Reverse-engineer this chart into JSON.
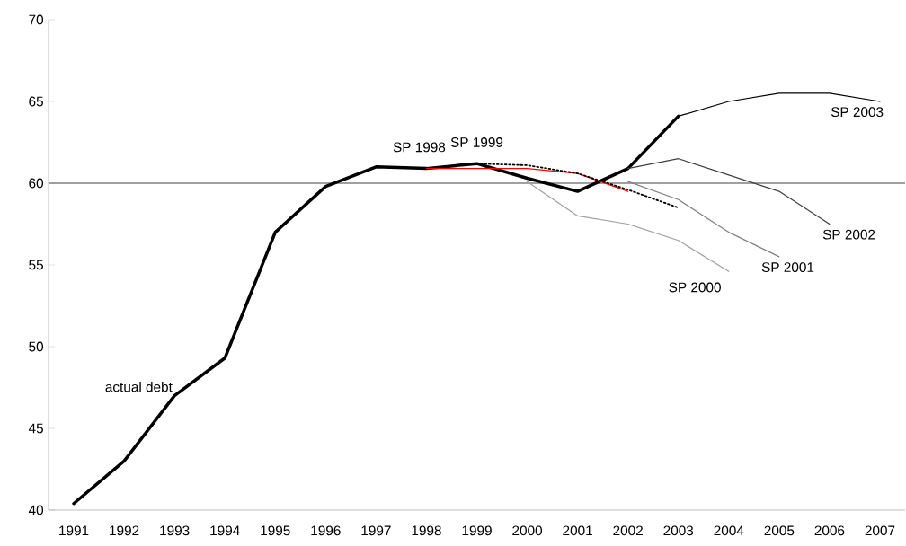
{
  "chart_data": {
    "type": "line",
    "xlim": [
      1990.5,
      2007.5
    ],
    "xticks": [
      1991,
      1992,
      1993,
      1994,
      1995,
      1996,
      1997,
      1998,
      1999,
      2000,
      2001,
      2002,
      2003,
      2004,
      2005,
      2006,
      2007
    ],
    "ylim": [
      40,
      70
    ],
    "yticks": [
      40,
      45,
      50,
      55,
      60,
      65,
      70
    ],
    "marker": "none",
    "ref_lines": [
      {
        "axis": "y",
        "value": 60,
        "color": "#808080",
        "line_style": "solid"
      }
    ],
    "series": [
      {
        "name": "actual debt",
        "color": "#000000",
        "line_style": "solid",
        "x": [
          1991,
          1992,
          1993,
          1994,
          1995,
          1996,
          1997,
          1998,
          1999,
          2000,
          2001,
          2002,
          2003
        ],
        "values": [
          40.4,
          43.0,
          47.0,
          49.3,
          57.0,
          59.8,
          61.0,
          60.9,
          61.2,
          60.3,
          59.5,
          60.9,
          64.1
        ]
      },
      {
        "name": "SP 1998",
        "color": "#ff0000",
        "line_style": "solid",
        "x": [
          1998,
          1999,
          2000,
          2001,
          2002
        ],
        "values": [
          60.9,
          60.9,
          60.9,
          60.6,
          59.5
        ]
      },
      {
        "name": "SP 1999",
        "color": "#000000",
        "line_style": "dotted",
        "x": [
          1999,
          2000,
          2001,
          2002,
          2003
        ],
        "values": [
          61.2,
          61.1,
          60.6,
          59.6,
          58.5
        ]
      },
      {
        "name": "SP 2000",
        "color": "#a0a0a0",
        "line_style": "solid",
        "x": [
          2000,
          2001,
          2002,
          2003,
          2004
        ],
        "values": [
          60.1,
          58.0,
          57.5,
          56.5,
          54.6
        ]
      },
      {
        "name": "SP 2001",
        "color": "#808080",
        "line_style": "solid",
        "x": [
          2002,
          2003,
          2004,
          2005
        ],
        "values": [
          60.1,
          59.0,
          57.0,
          55.5
        ]
      },
      {
        "name": "SP 2002",
        "color": "#404040",
        "line_style": "solid",
        "x": [
          2002,
          2003,
          2004,
          2005,
          2006
        ],
        "values": [
          60.9,
          61.5,
          60.5,
          59.5,
          57.5
        ]
      },
      {
        "name": "SP 2003",
        "color": "#000000",
        "line_style": "solid",
        "x": [
          2003,
          2004,
          2005,
          2006,
          2007
        ],
        "values": [
          64.1,
          65.0,
          65.5,
          65.5,
          65.0
        ]
      }
    ]
  }
}
